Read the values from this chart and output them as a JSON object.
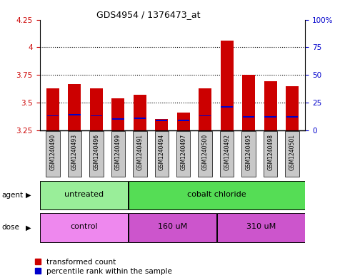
{
  "title": "GDS4954 / 1376473_at",
  "samples": [
    "GSM1240490",
    "GSM1240493",
    "GSM1240496",
    "GSM1240499",
    "GSM1240491",
    "GSM1240494",
    "GSM1240497",
    "GSM1240500",
    "GSM1240492",
    "GSM1240495",
    "GSM1240498",
    "GSM1240501"
  ],
  "transformed_count": [
    3.63,
    3.67,
    3.63,
    3.54,
    3.57,
    3.35,
    3.41,
    3.63,
    4.06,
    3.75,
    3.69,
    3.65
  ],
  "percentile_rank": [
    3.38,
    3.39,
    3.38,
    3.35,
    3.36,
    3.34,
    3.34,
    3.38,
    3.46,
    3.37,
    3.37,
    3.37
  ],
  "bar_bottom": 3.25,
  "ylim_left": [
    3.25,
    4.25
  ],
  "ylim_right": [
    0,
    100
  ],
  "yticks_left": [
    3.25,
    3.5,
    3.75,
    4.0,
    4.25
  ],
  "yticks_right": [
    0,
    25,
    50,
    75,
    100
  ],
  "ytick_labels_left": [
    "3.25",
    "3.5",
    "3.75",
    "4",
    "4.25"
  ],
  "ytick_labels_right": [
    "0",
    "25",
    "50",
    "75",
    "100%"
  ],
  "gridlines": [
    3.5,
    3.75,
    4.0
  ],
  "agent_groups": [
    {
      "label": "untreated",
      "start": 0,
      "end": 4,
      "color": "#99ee99"
    },
    {
      "label": "cobalt chloride",
      "start": 4,
      "end": 12,
      "color": "#55dd55"
    }
  ],
  "dose_groups": [
    {
      "label": "control",
      "start": 0,
      "end": 4,
      "color": "#ee88ee"
    },
    {
      "label": "160 uM",
      "start": 4,
      "end": 8,
      "color": "#cc55cc"
    },
    {
      "label": "310 uM",
      "start": 8,
      "end": 12,
      "color": "#cc55cc"
    }
  ],
  "bar_color": "#cc0000",
  "percentile_color": "#0000cc",
  "bg_color": "#c8c8c8",
  "plot_bg_color": "#ffffff",
  "tick_color_left": "#cc0000",
  "tick_color_right": "#0000cc",
  "legend_red": "transformed count",
  "legend_blue": "percentile rank within the sample",
  "figsize": [
    4.83,
    3.93
  ],
  "dpi": 100
}
